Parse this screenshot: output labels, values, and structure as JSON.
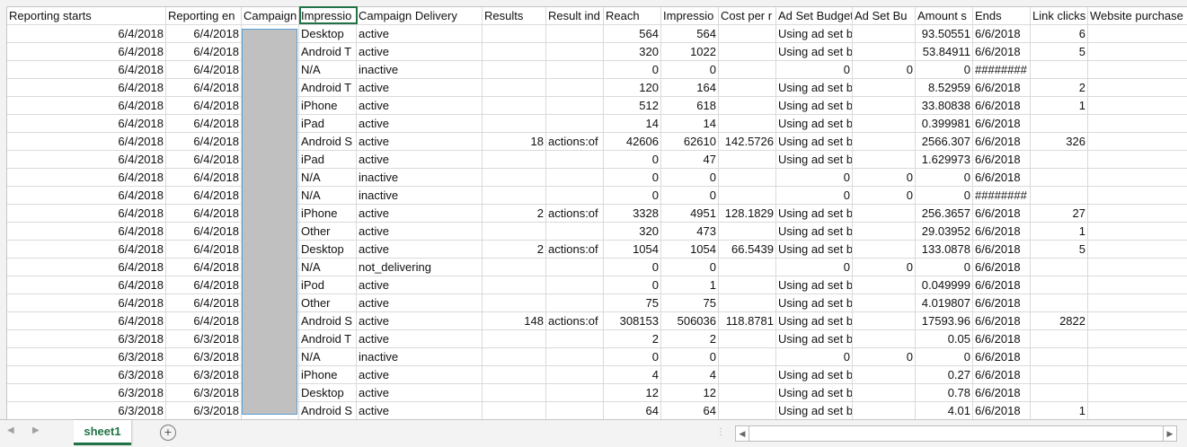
{
  "headers": [
    "Reporting starts",
    "Reporting en",
    "Campaign",
    "Impressio",
    "Campaign Delivery",
    "Results",
    "Result ind",
    "Reach",
    "Impressio",
    "Cost per r",
    "Ad Set Budget",
    "Ad Set Bu",
    "Amount s",
    "Ends",
    "Link clicks",
    "Website purchase"
  ],
  "row_numbers": [
    "",
    "",
    "",
    "",
    "",
    "",
    "",
    "",
    "",
    "",
    "",
    "",
    "",
    "",
    "",
    "",
    "",
    "",
    "",
    "",
    "",
    "",
    ""
  ],
  "rows": [
    [
      "6/4/2018",
      "6/4/2018",
      "",
      "Desktop",
      "active",
      "",
      "",
      "564",
      "564",
      "",
      "Using ad set budget",
      "",
      "93.50551",
      "6/6/2018",
      "6",
      ""
    ],
    [
      "6/4/2018",
      "6/4/2018",
      "",
      "Android T",
      "active",
      "",
      "",
      "320",
      "1022",
      "",
      "Using ad set budget",
      "",
      "53.84911",
      "6/6/2018",
      "5",
      ""
    ],
    [
      "6/4/2018",
      "6/4/2018",
      "",
      "N/A",
      "inactive",
      "",
      "",
      "0",
      "0",
      "",
      "0",
      "0",
      "0",
      "########",
      "",
      ""
    ],
    [
      "6/4/2018",
      "6/4/2018",
      "",
      "Android T",
      "active",
      "",
      "",
      "120",
      "164",
      "",
      "Using ad set budget",
      "",
      "8.52959",
      "6/6/2018",
      "2",
      ""
    ],
    [
      "6/4/2018",
      "6/4/2018",
      "",
      "iPhone",
      "active",
      "",
      "",
      "512",
      "618",
      "",
      "Using ad set budget",
      "",
      "33.80838",
      "6/6/2018",
      "1",
      ""
    ],
    [
      "6/4/2018",
      "6/4/2018",
      "",
      "iPad",
      "active",
      "",
      "",
      "14",
      "14",
      "",
      "Using ad set budget",
      "",
      "0.399981",
      "6/6/2018",
      "",
      ""
    ],
    [
      "6/4/2018",
      "6/4/2018",
      "",
      "Android S",
      "active",
      "18",
      "actions:of",
      "42606",
      "62610",
      "142.5726",
      "Using ad set budget",
      "",
      "2566.307",
      "6/6/2018",
      "326",
      ""
    ],
    [
      "6/4/2018",
      "6/4/2018",
      "",
      "iPad",
      "active",
      "",
      "",
      "0",
      "47",
      "",
      "Using ad set budget",
      "",
      "1.629973",
      "6/6/2018",
      "",
      ""
    ],
    [
      "6/4/2018",
      "6/4/2018",
      "",
      "N/A",
      "inactive",
      "",
      "",
      "0",
      "0",
      "",
      "0",
      "0",
      "0",
      "6/6/2018",
      "",
      ""
    ],
    [
      "6/4/2018",
      "6/4/2018",
      "",
      "N/A",
      "inactive",
      "",
      "",
      "0",
      "0",
      "",
      "0",
      "0",
      "0",
      "########",
      "",
      ""
    ],
    [
      "6/4/2018",
      "6/4/2018",
      "",
      "iPhone",
      "active",
      "2",
      "actions:of",
      "3328",
      "4951",
      "128.1829",
      "Using ad set budget",
      "",
      "256.3657",
      "6/6/2018",
      "27",
      ""
    ],
    [
      "6/4/2018",
      "6/4/2018",
      "",
      "Other",
      "active",
      "",
      "",
      "320",
      "473",
      "",
      "Using ad set budget",
      "",
      "29.03952",
      "6/6/2018",
      "1",
      ""
    ],
    [
      "6/4/2018",
      "6/4/2018",
      "",
      "Desktop",
      "active",
      "2",
      "actions:of",
      "1054",
      "1054",
      "66.5439",
      "Using ad set budget",
      "",
      "133.0878",
      "6/6/2018",
      "5",
      ""
    ],
    [
      "6/4/2018",
      "6/4/2018",
      "",
      "N/A",
      "not_delivering",
      "",
      "",
      "0",
      "0",
      "",
      "0",
      "0",
      "0",
      "6/6/2018",
      "",
      ""
    ],
    [
      "6/4/2018",
      "6/4/2018",
      "",
      "iPod",
      "active",
      "",
      "",
      "0",
      "1",
      "",
      "Using ad set budget",
      "",
      "0.049999",
      "6/6/2018",
      "",
      ""
    ],
    [
      "6/4/2018",
      "6/4/2018",
      "",
      "Other",
      "active",
      "",
      "",
      "75",
      "75",
      "",
      "Using ad set budget",
      "",
      "4.019807",
      "6/6/2018",
      "",
      ""
    ],
    [
      "6/4/2018",
      "6/4/2018",
      "",
      "Android S",
      "active",
      "148",
      "actions:of",
      "308153",
      "506036",
      "118.8781",
      "Using ad set budget",
      "",
      "17593.96",
      "6/6/2018",
      "2822",
      ""
    ],
    [
      "6/3/2018",
      "6/3/2018",
      "",
      "Android T",
      "active",
      "",
      "",
      "2",
      "2",
      "",
      "Using ad set budget",
      "",
      "0.05",
      "6/6/2018",
      "",
      ""
    ],
    [
      "6/3/2018",
      "6/3/2018",
      "",
      "N/A",
      "inactive",
      "",
      "",
      "0",
      "0",
      "",
      "0",
      "0",
      "0",
      "6/6/2018",
      "",
      ""
    ],
    [
      "6/3/2018",
      "6/3/2018",
      "",
      "iPhone",
      "active",
      "",
      "",
      "4",
      "4",
      "",
      "Using ad set budget",
      "",
      "0.27",
      "6/6/2018",
      "",
      ""
    ],
    [
      "6/3/2018",
      "6/3/2018",
      "",
      "Desktop",
      "active",
      "",
      "",
      "12",
      "12",
      "",
      "Using ad set budget",
      "",
      "0.78",
      "6/6/2018",
      "",
      ""
    ],
    [
      "6/3/2018",
      "6/3/2018",
      "",
      "Android S",
      "active",
      "",
      "",
      "64",
      "64",
      "",
      "Using ad set budget",
      "",
      "4.01",
      "6/6/2018",
      "1",
      ""
    ]
  ],
  "sheet_tab": "sheet1",
  "add_sheet_symbol": "+",
  "icons": {
    "scroll_left": "◀",
    "scroll_right": "▶",
    "nav_prev": "◀",
    "nav_next": "▶",
    "splitter": "⋮"
  },
  "colors": {
    "accent": "#217346",
    "redacted": "#c0c0c0"
  }
}
